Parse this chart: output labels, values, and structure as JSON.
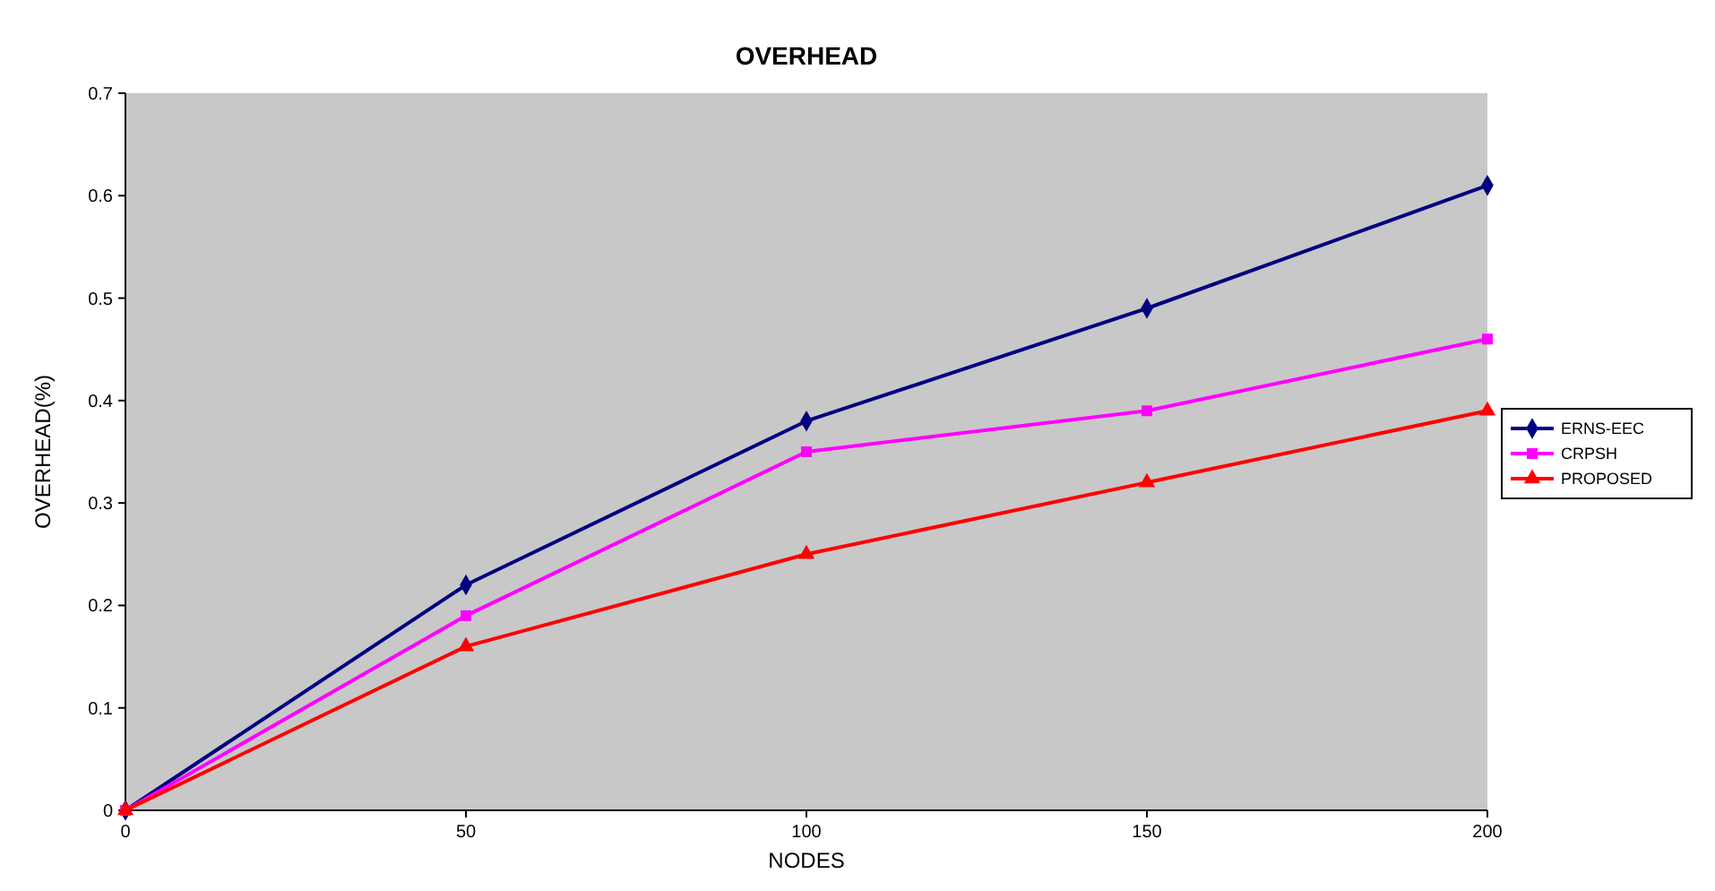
{
  "chart_data": {
    "type": "line",
    "title": "OVERHEAD",
    "xlabel": "NODES",
    "ylabel": "OVERHEAD(%)",
    "x": [
      0,
      50,
      100,
      150,
      200
    ],
    "series": [
      {
        "name": "ERNS-EEC",
        "color": "#000080",
        "marker": "diamond",
        "values": [
          0,
          0.22,
          0.38,
          0.49,
          0.61
        ]
      },
      {
        "name": "CRPSH",
        "color": "#ff00ff",
        "marker": "square",
        "values": [
          0,
          0.19,
          0.35,
          0.39,
          0.46
        ]
      },
      {
        "name": "PROPOSED",
        "color": "#ff0000",
        "marker": "triangle",
        "values": [
          0,
          0.16,
          0.25,
          0.32,
          0.39
        ]
      }
    ],
    "xlim": [
      0,
      200
    ],
    "xticks": [
      0,
      50,
      100,
      150,
      200
    ],
    "ylim": [
      0,
      0.7
    ],
    "yticks": [
      0,
      0.1,
      0.2,
      0.3,
      0.4,
      0.5,
      0.6,
      0.7
    ],
    "grid": false,
    "legend": "right",
    "line_style": "solid"
  }
}
